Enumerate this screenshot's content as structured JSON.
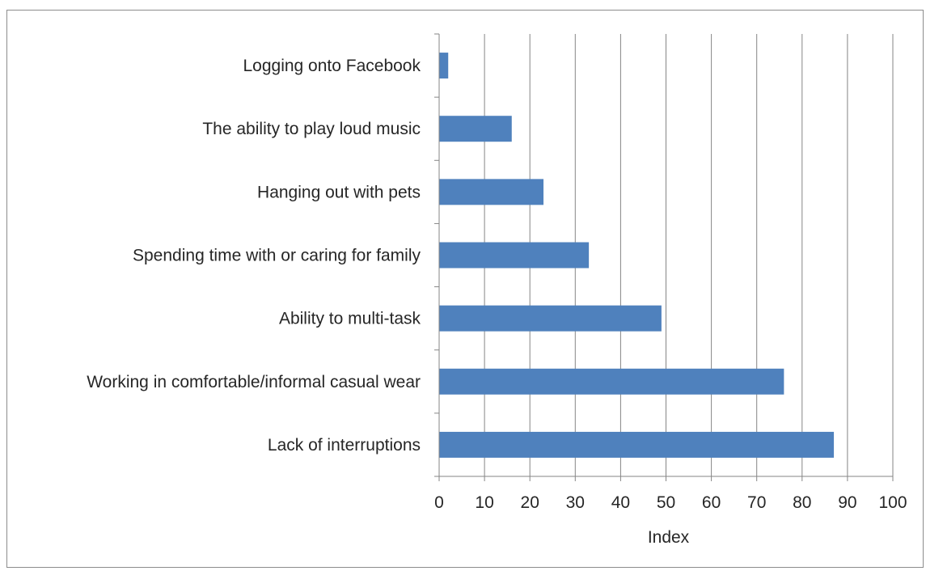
{
  "chart_data": {
    "type": "bar",
    "orientation": "horizontal",
    "categories": [
      "Lack of interruptions",
      "Working in comfortable/informal casual wear",
      "Ability to multi-task",
      "Spending time with or caring for family",
      "Hanging out with pets",
      "The ability to play loud music",
      "Logging onto Facebook"
    ],
    "values": [
      87,
      76,
      49,
      33,
      23,
      16,
      2
    ],
    "xlabel": "Index",
    "ylabel": "",
    "xlim": [
      0,
      100
    ],
    "xticks": [
      "0",
      "10",
      "20",
      "30",
      "40",
      "50",
      "60",
      "70",
      "80",
      "90",
      "100"
    ],
    "grid": true,
    "bar_color": "#4f81bd"
  }
}
